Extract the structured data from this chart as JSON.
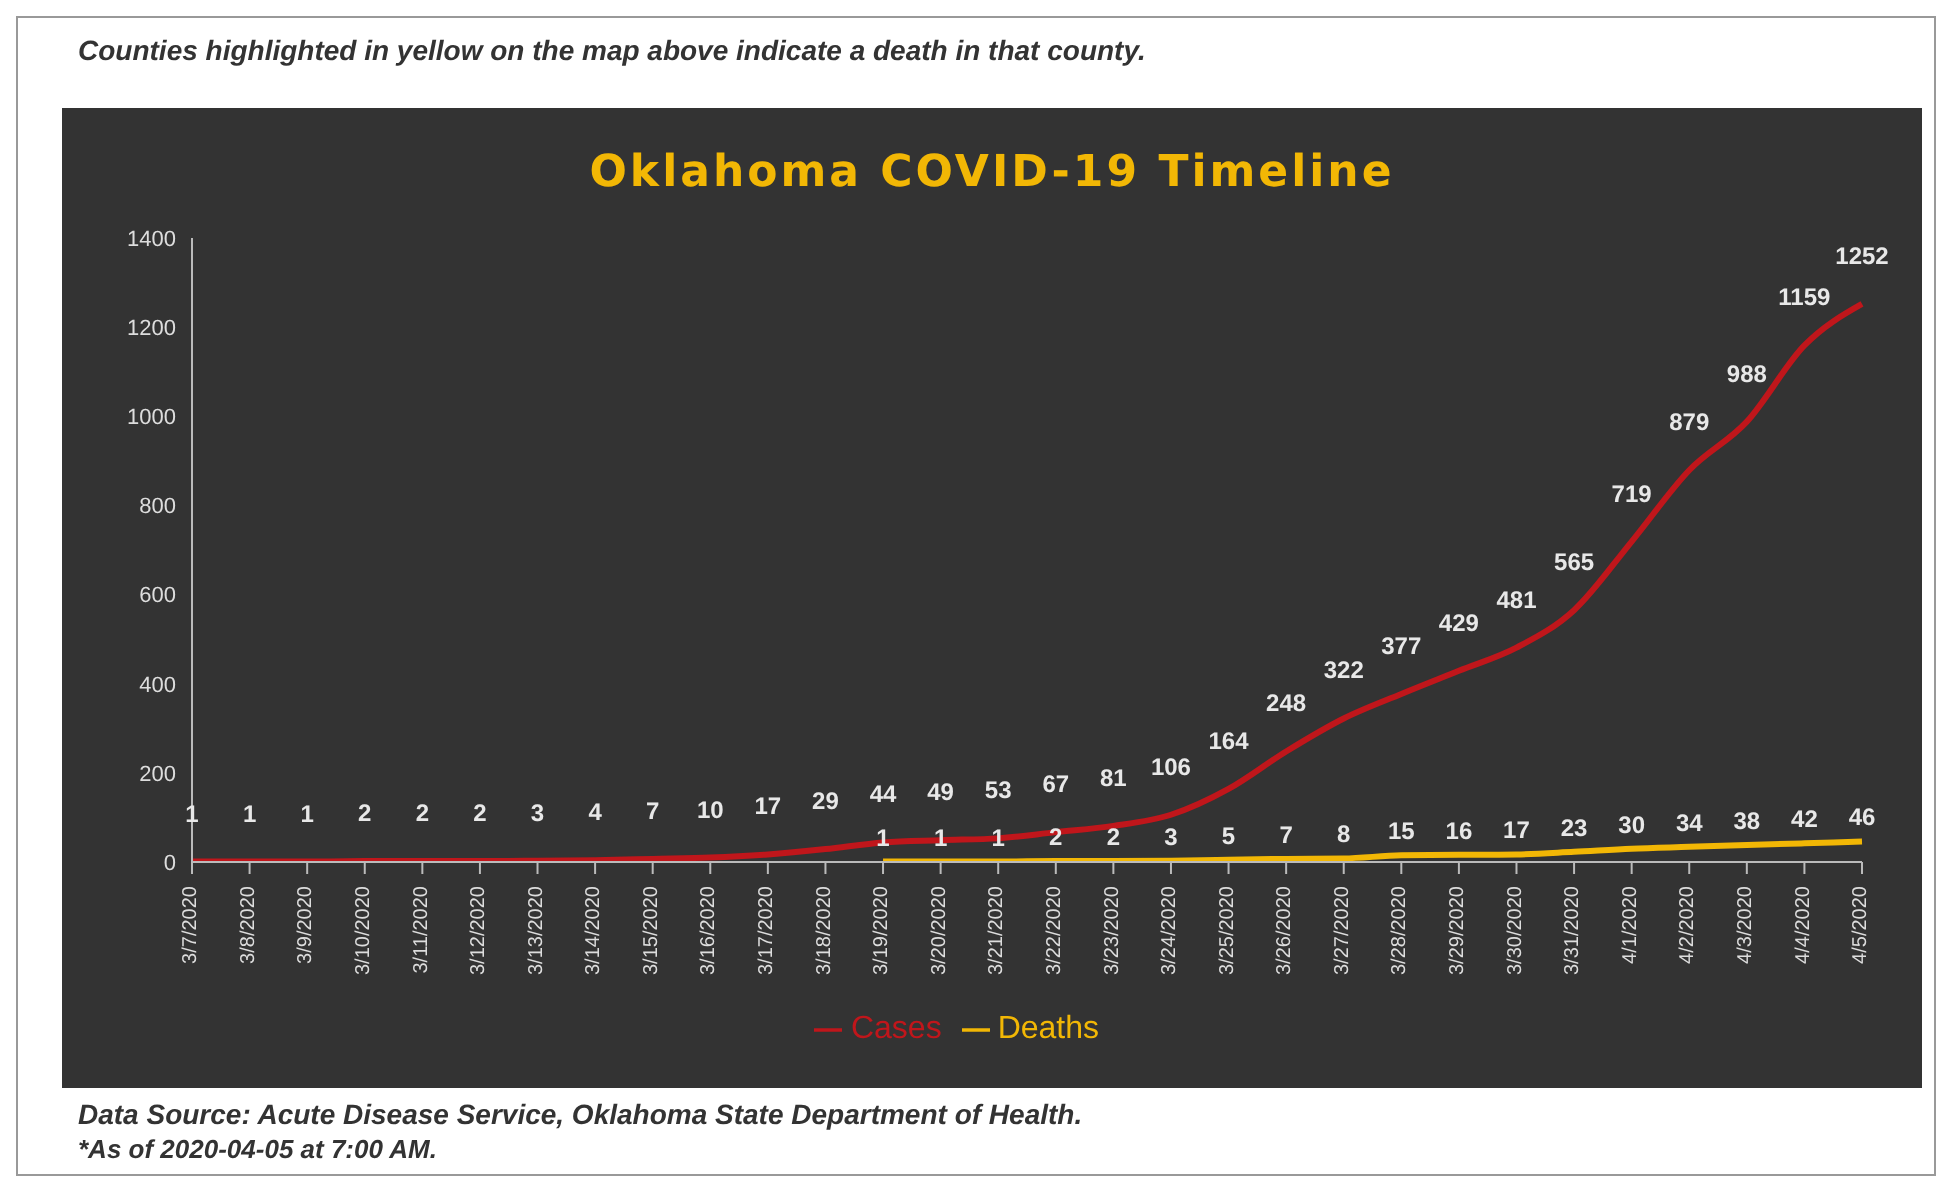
{
  "chart_data": {
    "type": "line",
    "title": "Oklahoma COVID-19 Timeline",
    "categories": [
      "3/7/2020",
      "3/8/2020",
      "3/9/2020",
      "3/10/2020",
      "3/11/2020",
      "3/12/2020",
      "3/13/2020",
      "3/14/2020",
      "3/15/2020",
      "3/16/2020",
      "3/17/2020",
      "3/18/2020",
      "3/19/2020",
      "3/20/2020",
      "3/21/2020",
      "3/22/2020",
      "3/23/2020",
      "3/24/2020",
      "3/25/2020",
      "3/26/2020",
      "3/27/2020",
      "3/28/2020",
      "3/29/2020",
      "3/30/2020",
      "3/31/2020",
      "4/1/2020",
      "4/2/2020",
      "4/3/2020",
      "4/4/2020",
      "4/5/2020"
    ],
    "series": [
      {
        "name": "Cases",
        "color": "#c0161b",
        "values": [
          1,
          1,
          1,
          2,
          2,
          2,
          3,
          4,
          7,
          10,
          17,
          29,
          44,
          49,
          53,
          67,
          81,
          106,
          164,
          248,
          322,
          377,
          429,
          481,
          565,
          719,
          879,
          988,
          1159,
          1252
        ]
      },
      {
        "name": "Deaths",
        "color": "#f2b705",
        "values": [
          null,
          null,
          null,
          null,
          null,
          null,
          null,
          null,
          null,
          null,
          null,
          null,
          1,
          1,
          1,
          2,
          2,
          3,
          5,
          7,
          8,
          15,
          16,
          17,
          23,
          30,
          34,
          38,
          42,
          46
        ]
      }
    ],
    "ylim": [
      0,
      1400
    ],
    "yticks": [
      0,
      200,
      400,
      600,
      800,
      1000,
      1200,
      1400
    ],
    "grid": false,
    "legend": "bottom",
    "data_labels": true,
    "marker": "none",
    "line_style": "solid",
    "annotations": [
      "Counties highlighted in yellow on the map above indicate a death in that county.",
      "Data Source: Acute Disease Service, Oklahoma State Department of Health.",
      "*As of 2020-04-05 at 7:00 AM."
    ]
  }
}
